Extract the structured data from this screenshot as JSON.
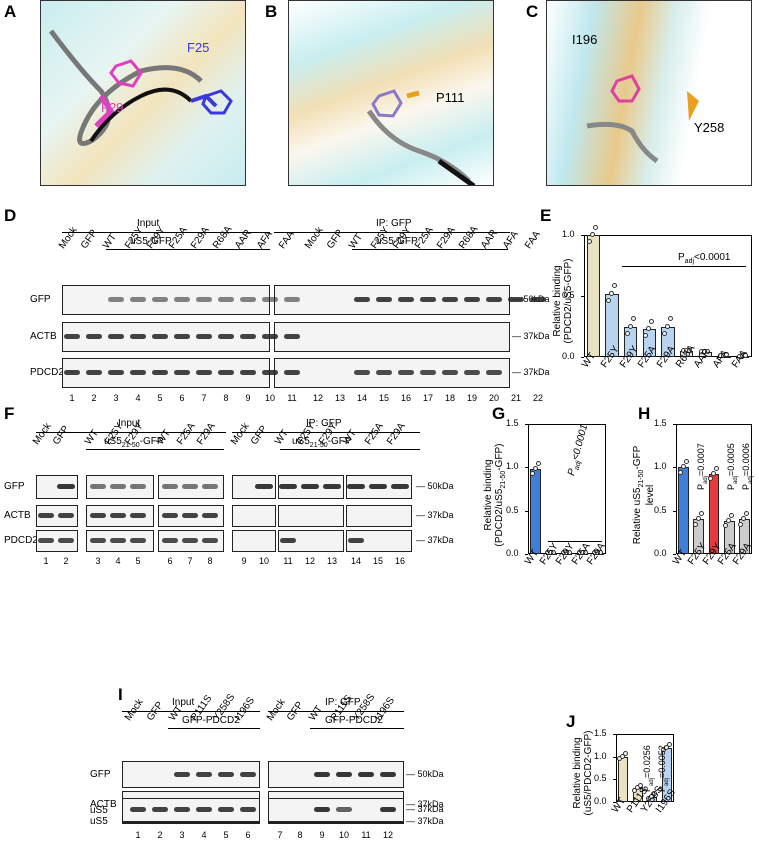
{
  "panels": {
    "A": "A",
    "B": "B",
    "C": "C",
    "D": "D",
    "E": "E",
    "F": "F",
    "G": "G",
    "H": "H",
    "I": "I",
    "J": "J"
  },
  "structure": {
    "a_f25": "F25",
    "a_f29": "F29",
    "b_p111": "P111",
    "c_i196": "I196",
    "c_y258": "Y258"
  },
  "D": {
    "input": "Input",
    "ip": "IP: GFP",
    "construct": "uS5-GFP",
    "lanes_left": [
      "Mock",
      "GFP",
      "WT",
      "F25Y",
      "F29Y",
      "F25A",
      "F29A",
      "R68A",
      "AAR",
      "AFA",
      "FAA"
    ],
    "lanes_right": [
      "Mock",
      "GFP",
      "WT",
      "F25Y",
      "F29Y",
      "F25A",
      "F29A",
      "R68A",
      "AAR",
      "AFA",
      "FAA"
    ],
    "rows": [
      "GFP",
      "ACTB",
      "PDCD2"
    ],
    "markers": [
      "50kDa",
      "37kDa",
      "37kDa"
    ],
    "numbers_left": [
      "1",
      "2",
      "3",
      "4",
      "5",
      "6",
      "7",
      "8",
      "9",
      "10",
      "11"
    ],
    "numbers_right": [
      "12",
      "13",
      "14",
      "15",
      "16",
      "17",
      "18",
      "19",
      "20",
      "21",
      "22"
    ]
  },
  "F": {
    "input": "Input",
    "ip": "IP: GFP",
    "construct": "uS5",
    "construct_sub": "21-50",
    "construct_suffix": "-GFP",
    "lanes_left": [
      "Mock",
      "GFP",
      "WT",
      "F25Y",
      "F29Y",
      "WT",
      "F25A",
      "F29A"
    ],
    "lanes_right": [
      "WT",
      "F25Y",
      "F29Y",
      "WT",
      "F25A",
      "F29A"
    ],
    "lanes_right_first": [
      "Mock",
      "GFP"
    ],
    "rows": [
      "GFP",
      "ACTB",
      "PDCD2"
    ],
    "markers": [
      "50kDa",
      "37kDa",
      "37kDa"
    ],
    "numbers_left": [
      "1",
      "2",
      "3",
      "4",
      "5",
      "6",
      "7",
      "8"
    ],
    "numbers_right": [
      "9",
      "10",
      "11",
      "12",
      "13",
      "14",
      "15",
      "16"
    ]
  },
  "I": {
    "input": "Input",
    "ip": "IP: GFP",
    "construct": "GFP-PDCD2",
    "lanes_left": [
      "Mock",
      "GFP",
      "WT",
      "P111S",
      "Y258S",
      "I196S"
    ],
    "lanes_right": [
      "Mock",
      "GFP",
      "WT",
      "P111S",
      "Y258S",
      "I196S"
    ],
    "rows": [
      "GFP",
      "ACTB",
      "uS5"
    ],
    "markers": [
      "50kDa",
      "37kDa",
      "37kDa"
    ],
    "numbers_left": [
      "1",
      "2",
      "3",
      "4",
      "5",
      "6"
    ],
    "numbers_right": [
      "7",
      "8",
      "9",
      "10",
      "11",
      "12"
    ]
  },
  "chart_data": [
    {
      "id": "E",
      "type": "bar",
      "categories": [
        "WT",
        "F25Y",
        "F29Y",
        "F25A",
        "F29A",
        "R68A",
        "AAR",
        "AFA",
        "FAA"
      ],
      "values": [
        1.0,
        0.52,
        0.25,
        0.23,
        0.25,
        0.05,
        0.04,
        0.01,
        0.005
      ],
      "ylabel": "Relative binding",
      "ylabel2": "(PDCD2/uS5-GFP)",
      "ylim": [
        0,
        1.0
      ],
      "yticks": [
        "0.0",
        "0.5",
        "1.0"
      ],
      "annotation": "P",
      "annotation_sub": "adj",
      "annotation_rest": "<0.0001",
      "colors": [
        "#e8e3c2",
        "#b8d4f0",
        "#b8d4f0",
        "#b8d4f0",
        "#b8d4f0",
        "#dddddd",
        "#dddddd",
        "#dddddd",
        "#dddddd"
      ]
    },
    {
      "id": "G",
      "type": "bar",
      "categories": [
        "WT",
        "F25Y",
        "F29Y",
        "F25A",
        "F29A"
      ],
      "values": [
        0.98,
        0.01,
        0.01,
        0.01,
        0.01
      ],
      "ylabel": "Relative binding",
      "ylabel2": "(PDCD2/uS5",
      "ylabel2_sub": "21-50",
      "ylabel2_suffix": "-GFP)",
      "ylim": [
        0,
        1.5
      ],
      "yticks": [
        "0.0",
        "0.5",
        "1.0",
        "1.5"
      ],
      "annotation": "P",
      "annotation_sub": "adj",
      "annotation_rest": "<0.0001",
      "colors": [
        "#3e7fd9",
        "#dddddd",
        "#dddddd",
        "#dddddd",
        "#dddddd"
      ]
    },
    {
      "id": "H",
      "type": "bar",
      "categories": [
        "WT",
        "F25Y",
        "F29Y",
        "F25A",
        "F29A"
      ],
      "values": [
        1.0,
        0.4,
        0.92,
        0.38,
        0.4
      ],
      "ylabel": "Relative uS5",
      "ylabel_sub": "21-50",
      "ylabel_suffix": "-GFP",
      "ylabel2": "level",
      "ylim": [
        0,
        1.5
      ],
      "yticks": [
        "0.0",
        "0.5",
        "1.0",
        "1.5"
      ],
      "pvals": [
        "P",
        "=0.0007",
        "",
        "P",
        "=0.0005",
        "P",
        "=0.0006"
      ],
      "pval_sub": "adj",
      "colors": [
        "#3e7fd9",
        "#cccccc",
        "#e83a3a",
        "#cccccc",
        "#cccccc"
      ]
    },
    {
      "id": "J",
      "type": "bar",
      "categories": [
        "WT",
        "P111S",
        "Y258S",
        "I196S"
      ],
      "values": [
        1.0,
        0.3,
        0.12,
        1.2
      ],
      "ylabel": "Relative binding",
      "ylabel2": "(uS5/PDCD2-GFP)",
      "ylim": [
        0,
        1.5
      ],
      "yticks": [
        "0.0",
        "0.5",
        "1.0",
        "1.5"
      ],
      "pvals": [
        "P",
        "=0.0256",
        "P",
        "=0.0052"
      ],
      "pval_sub": "adj",
      "colors": [
        "#e8e3c2",
        "#e8e3c2",
        "#b8d4f0",
        "#b8d4f0"
      ]
    }
  ]
}
